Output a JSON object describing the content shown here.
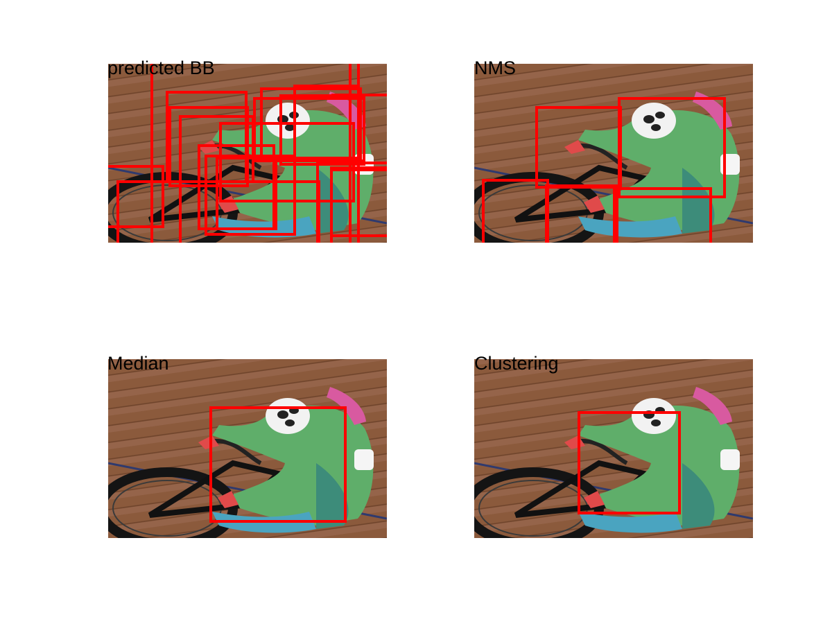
{
  "panels": [
    {
      "title": "predicted BB"
    },
    {
      "title": "NMS"
    },
    {
      "title": "Median"
    },
    {
      "title": "Clustering"
    }
  ]
}
